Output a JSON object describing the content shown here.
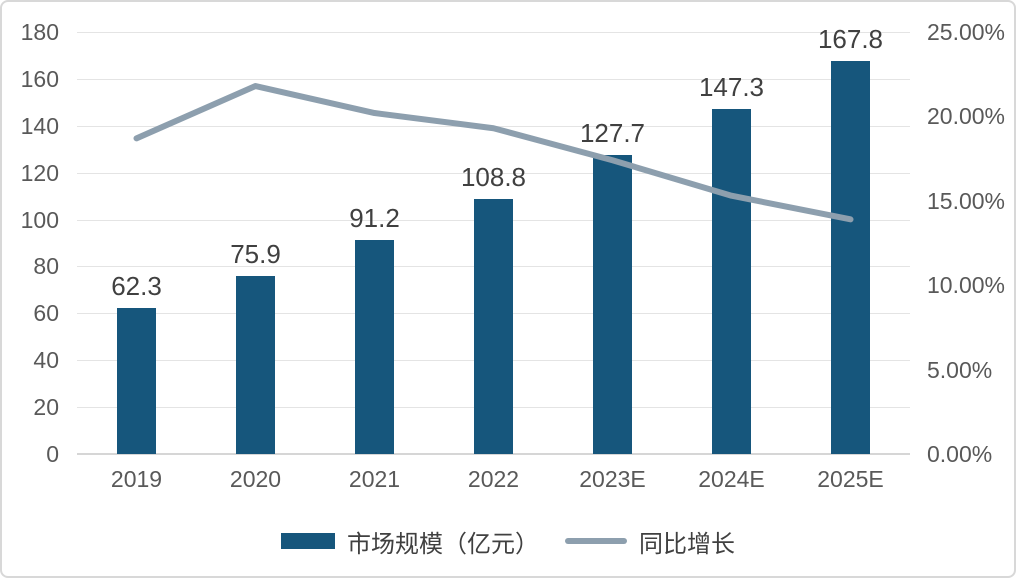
{
  "chart_data": {
    "type": "combo-bar-line",
    "title": "",
    "categories": [
      "2019",
      "2020",
      "2021",
      "2022",
      "2023E",
      "2024E",
      "2025E"
    ],
    "series": [
      {
        "name": "市场规模（亿元）",
        "type": "bar",
        "axis": "left",
        "values": [
          62.3,
          75.9,
          91.2,
          108.8,
          127.7,
          147.3,
          167.8
        ],
        "data_labels": [
          "62.3",
          "75.9",
          "91.2",
          "108.8",
          "127.7",
          "147.3",
          "167.8"
        ]
      },
      {
        "name": "同比增长",
        "type": "line",
        "axis": "right",
        "values_percent": [
          18.7,
          21.8,
          20.2,
          19.3,
          17.4,
          15.3,
          13.9
        ]
      }
    ],
    "left_axis": {
      "min": 0,
      "max": 180,
      "step": 20,
      "tick_labels": [
        "0",
        "20",
        "40",
        "60",
        "80",
        "100",
        "120",
        "140",
        "160",
        "180"
      ]
    },
    "right_axis": {
      "min": 0,
      "max": 25,
      "step": 5,
      "tick_labels": [
        "0.00%",
        "5.00%",
        "10.00%",
        "15.00%",
        "20.00%",
        "25.00%"
      ]
    },
    "grid": true,
    "legend_position": "bottom"
  },
  "colors": {
    "bar": "#16567c",
    "line": "#8d9fae",
    "gridline": "#e4e4e4",
    "axis_line": "#d6d6d6",
    "tick_text": "#595959",
    "label_text": "#404040",
    "border": "#d8d8d8",
    "background": "#ffffff"
  }
}
